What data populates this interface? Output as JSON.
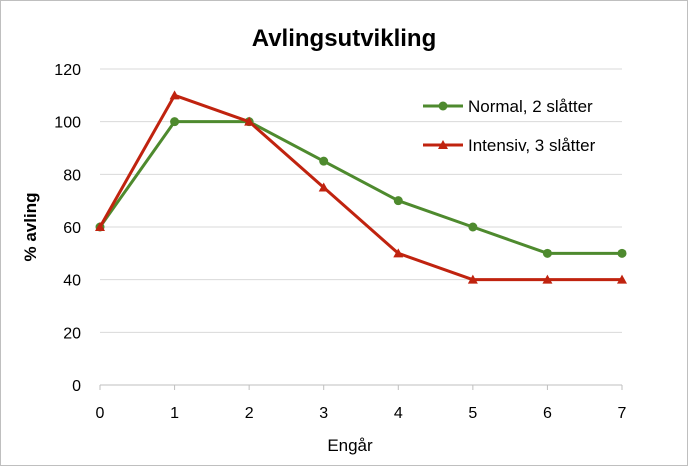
{
  "chart_data": {
    "type": "line",
    "title": "Avlingsutvikling",
    "xlabel": "Engår",
    "ylabel": "% avling",
    "x": [
      0,
      1,
      2,
      3,
      4,
      5,
      6,
      7
    ],
    "xlim": [
      0,
      7
    ],
    "ylim": [
      0,
      120
    ],
    "yticks": [
      0,
      20,
      40,
      60,
      80,
      100,
      120
    ],
    "grid": true,
    "legend_position": "top-right",
    "series": [
      {
        "name": "Normal, 2 slåtter",
        "values": [
          60,
          100,
          100,
          85,
          70,
          60,
          50,
          50
        ],
        "color": "#4e8a2e",
        "marker": "circle"
      },
      {
        "name": "Intensiv, 3 slåtter",
        "values": [
          60,
          110,
          100,
          75,
          50,
          40,
          40,
          40
        ],
        "color": "#c0230f",
        "marker": "triangle"
      }
    ]
  }
}
